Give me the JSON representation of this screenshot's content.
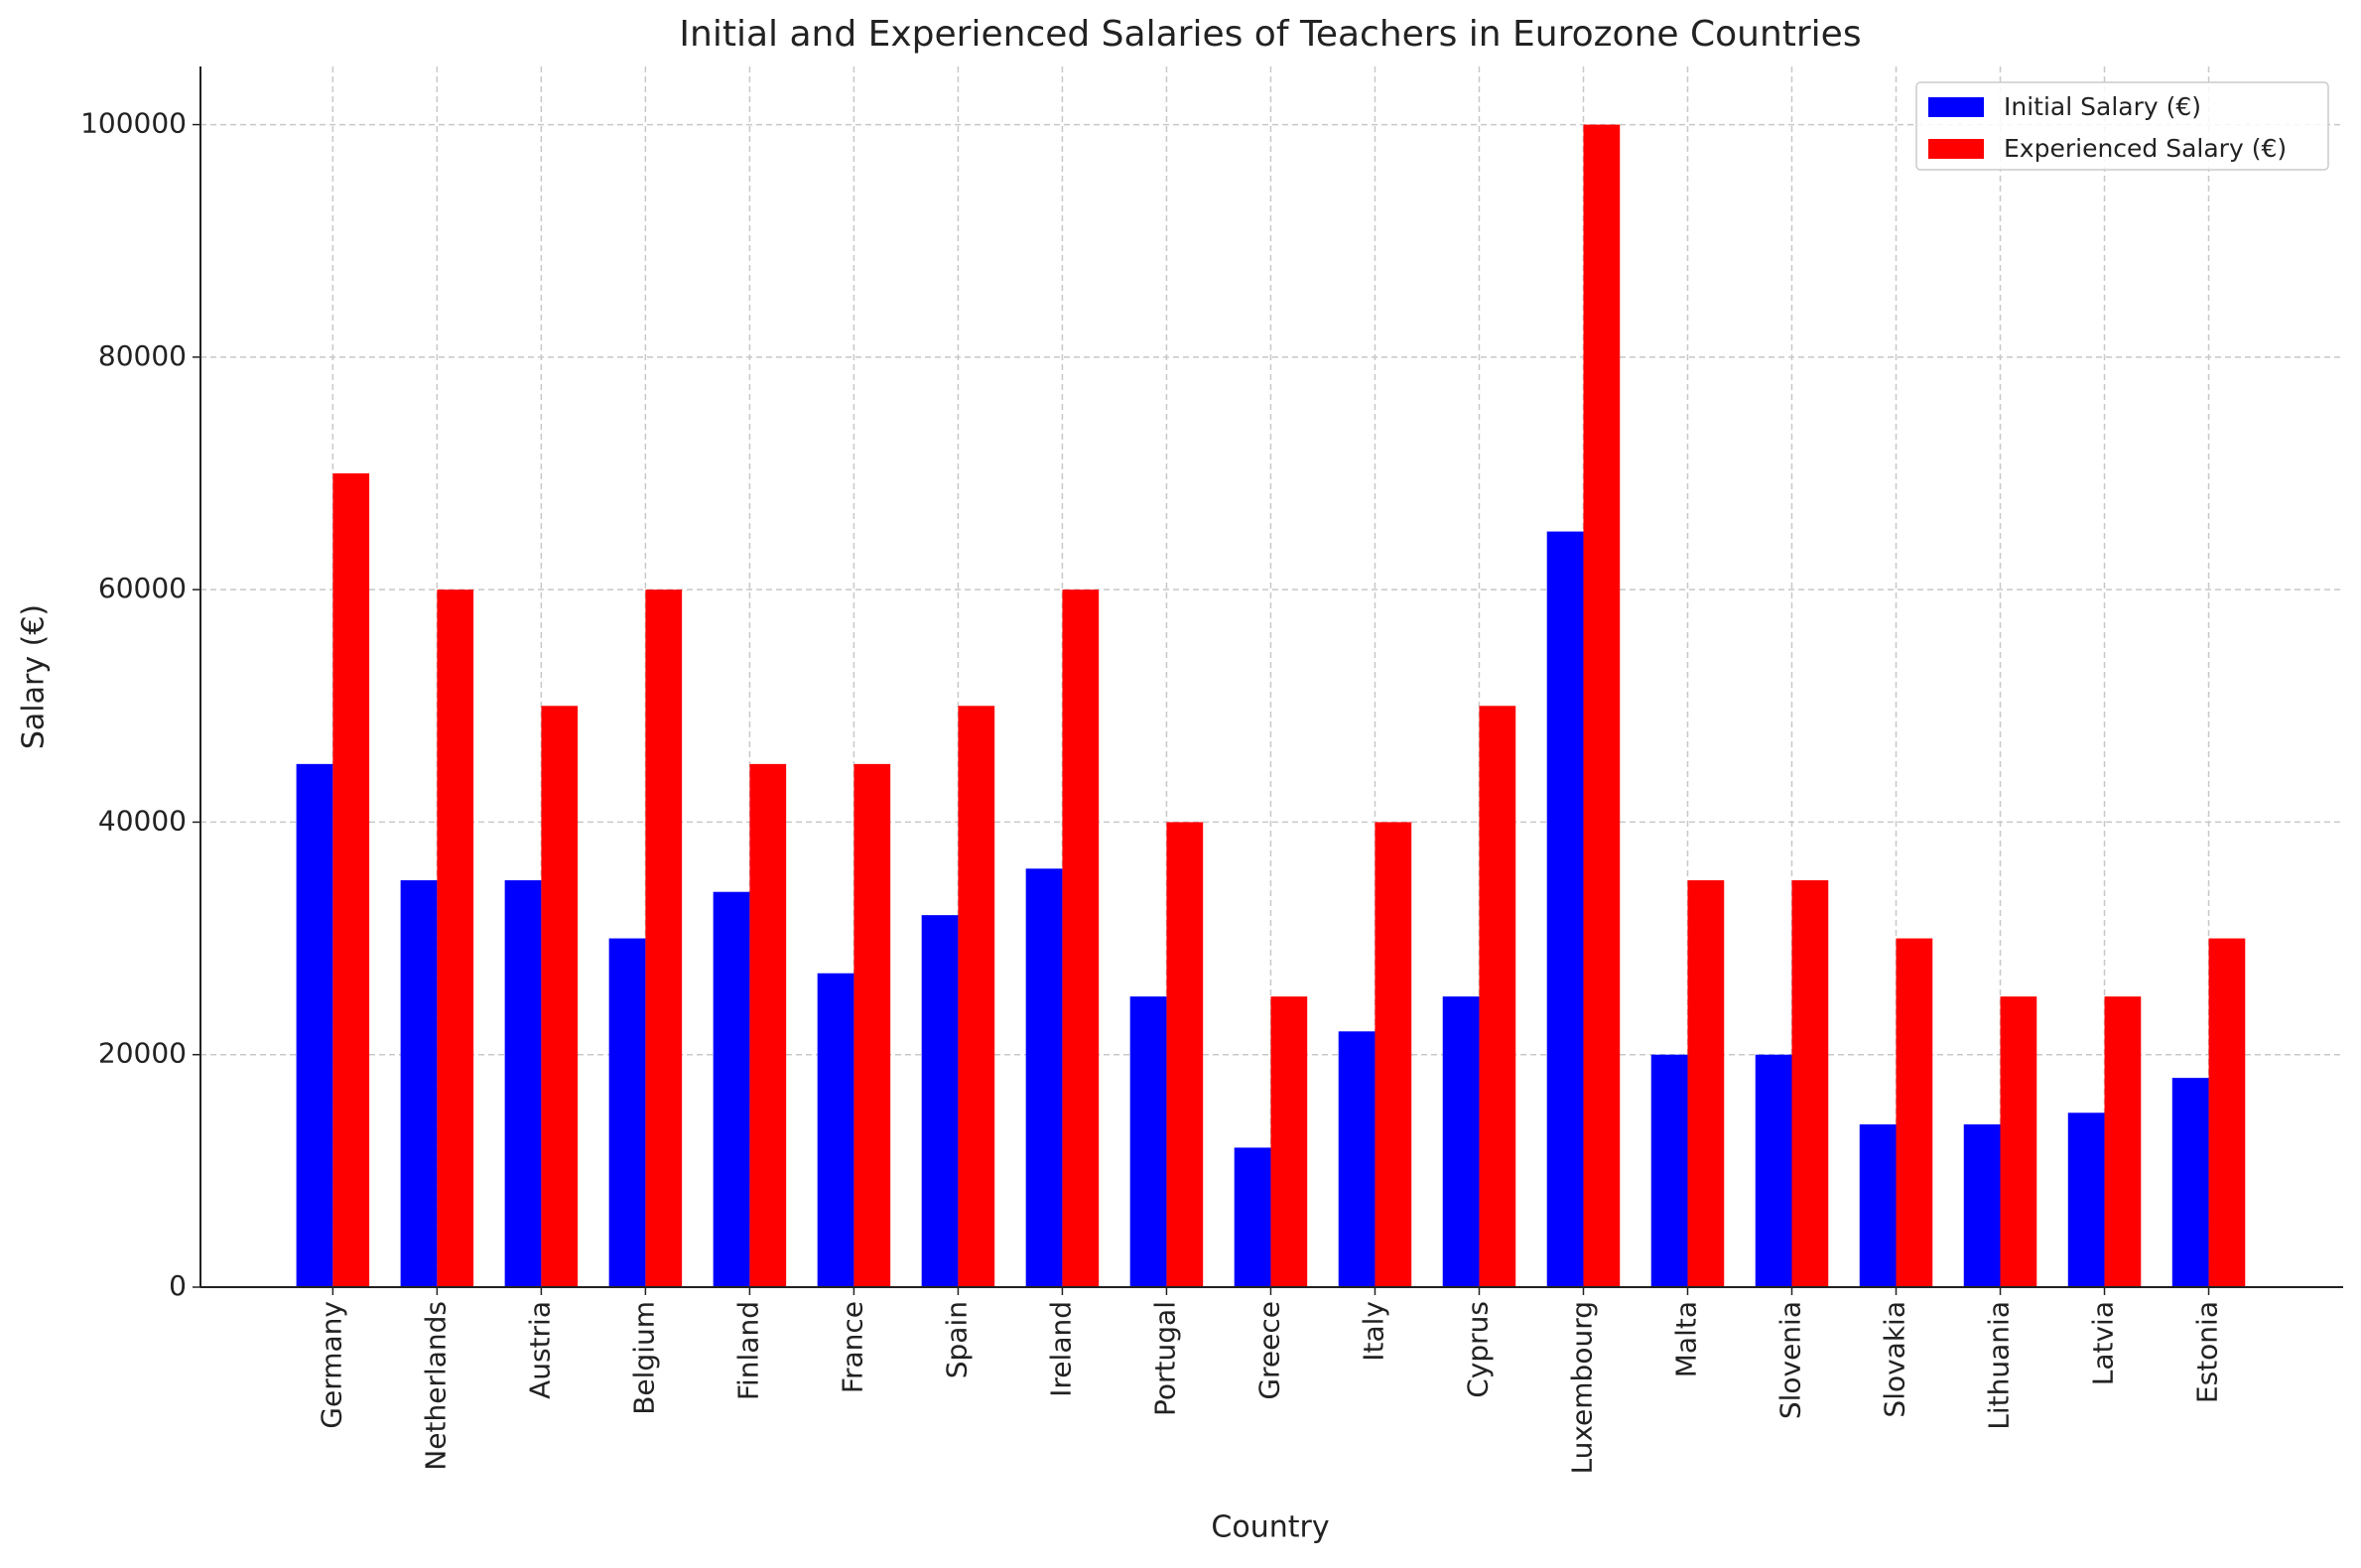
{
  "chart_data": {
    "type": "bar",
    "title": "Initial and Experienced Salaries of Teachers in Eurozone Countries",
    "x_label": "Country",
    "y_label": "Salary (€)",
    "categories": [
      "Germany",
      "Netherlands",
      "Austria",
      "Belgium",
      "Finland",
      "France",
      "Spain",
      "Ireland",
      "Portugal",
      "Greece",
      "Italy",
      "Cyprus",
      "Luxembourg",
      "Malta",
      "Slovenia",
      "Slovakia",
      "Lithuania",
      "Latvia",
      "Estonia"
    ],
    "series": [
      {
        "name": "Initial Salary (€)",
        "color": "#0000ff",
        "values": [
          45000,
          35000,
          35000,
          30000,
          34000,
          27000,
          32000,
          36000,
          25000,
          12000,
          22000,
          25000,
          65000,
          20000,
          20000,
          14000,
          14000,
          15000,
          18000
        ]
      },
      {
        "name": "Experienced Salary (€)",
        "color": "#ff0000",
        "values": [
          70000,
          60000,
          50000,
          60000,
          45000,
          45000,
          50000,
          60000,
          40000,
          25000,
          40000,
          50000,
          100000,
          35000,
          35000,
          30000,
          25000,
          25000,
          30000
        ]
      }
    ],
    "ylim": [
      0,
      105000
    ],
    "yticks": [
      0,
      20000,
      40000,
      60000,
      80000,
      100000
    ],
    "grid": true,
    "legend": "upper right"
  }
}
